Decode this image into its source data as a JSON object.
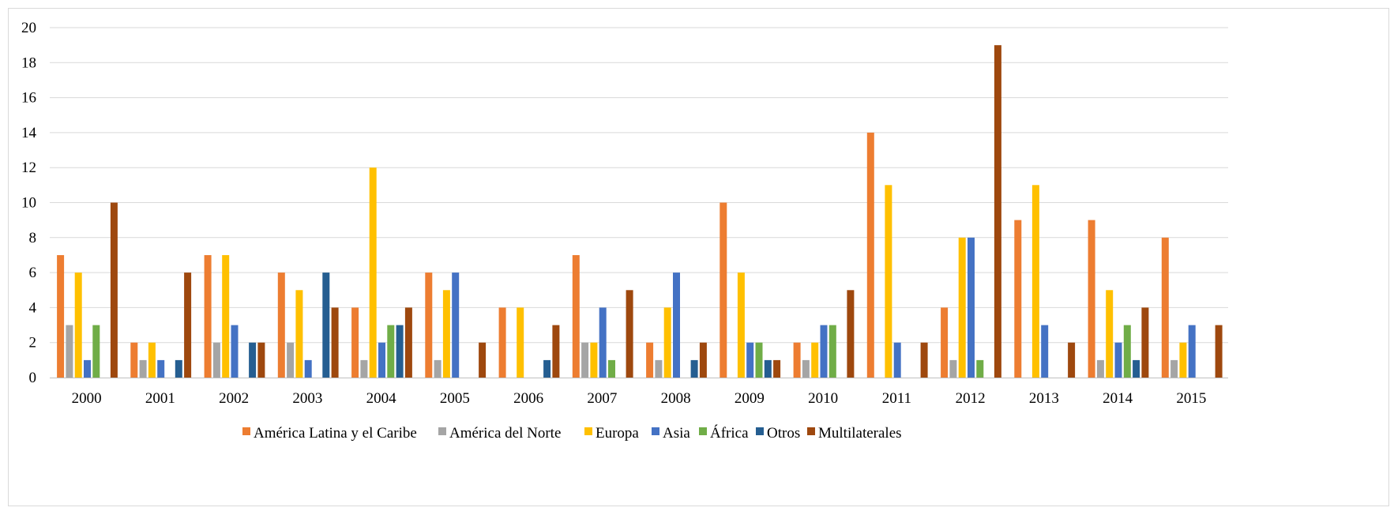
{
  "chart_data": {
    "type": "bar",
    "categories": [
      "2000",
      "2001",
      "2002",
      "2003",
      "2004",
      "2005",
      "2006",
      "2007",
      "2008",
      "2009",
      "2010",
      "2011",
      "2012",
      "2013",
      "2014",
      "2015"
    ],
    "series": [
      {
        "name": "América Latina y el Caribe",
        "color": "#ED7D31",
        "values": [
          7,
          2,
          7,
          6,
          4,
          6,
          4,
          7,
          2,
          10,
          2,
          14,
          4,
          9,
          9,
          8
        ]
      },
      {
        "name": "América del Norte",
        "color": "#A5A5A5",
        "values": [
          3,
          1,
          2,
          2,
          1,
          1,
          0,
          2,
          1,
          0,
          1,
          0,
          1,
          0,
          1,
          1
        ]
      },
      {
        "name": "Europa",
        "color": "#FFC000",
        "values": [
          6,
          2,
          7,
          5,
          12,
          5,
          4,
          2,
          4,
          6,
          2,
          11,
          8,
          11,
          5,
          2
        ]
      },
      {
        "name": "Asia",
        "color": "#4472C4",
        "values": [
          1,
          1,
          3,
          1,
          2,
          6,
          0,
          4,
          6,
          2,
          3,
          2,
          8,
          3,
          2,
          3
        ]
      },
      {
        "name": "África",
        "color": "#70AD47",
        "values": [
          3,
          0,
          0,
          0,
          3,
          0,
          0,
          1,
          0,
          2,
          3,
          0,
          1,
          0,
          3,
          0
        ]
      },
      {
        "name": "Otros",
        "color": "#255E91",
        "values": [
          0,
          1,
          2,
          6,
          3,
          0,
          1,
          0,
          1,
          1,
          0,
          0,
          0,
          0,
          1,
          0
        ]
      },
      {
        "name": "Multilaterales",
        "color": "#9E480E",
        "values": [
          10,
          6,
          2,
          4,
          4,
          2,
          3,
          5,
          2,
          1,
          5,
          2,
          19,
          2,
          4,
          3
        ]
      }
    ],
    "yticks": [
      "0",
      "2",
      "4",
      "6",
      "8",
      "10",
      "12",
      "14",
      "16",
      "18",
      "20"
    ],
    "ylim": [
      0,
      20
    ],
    "grid": true,
    "legend_position": "bottom"
  }
}
